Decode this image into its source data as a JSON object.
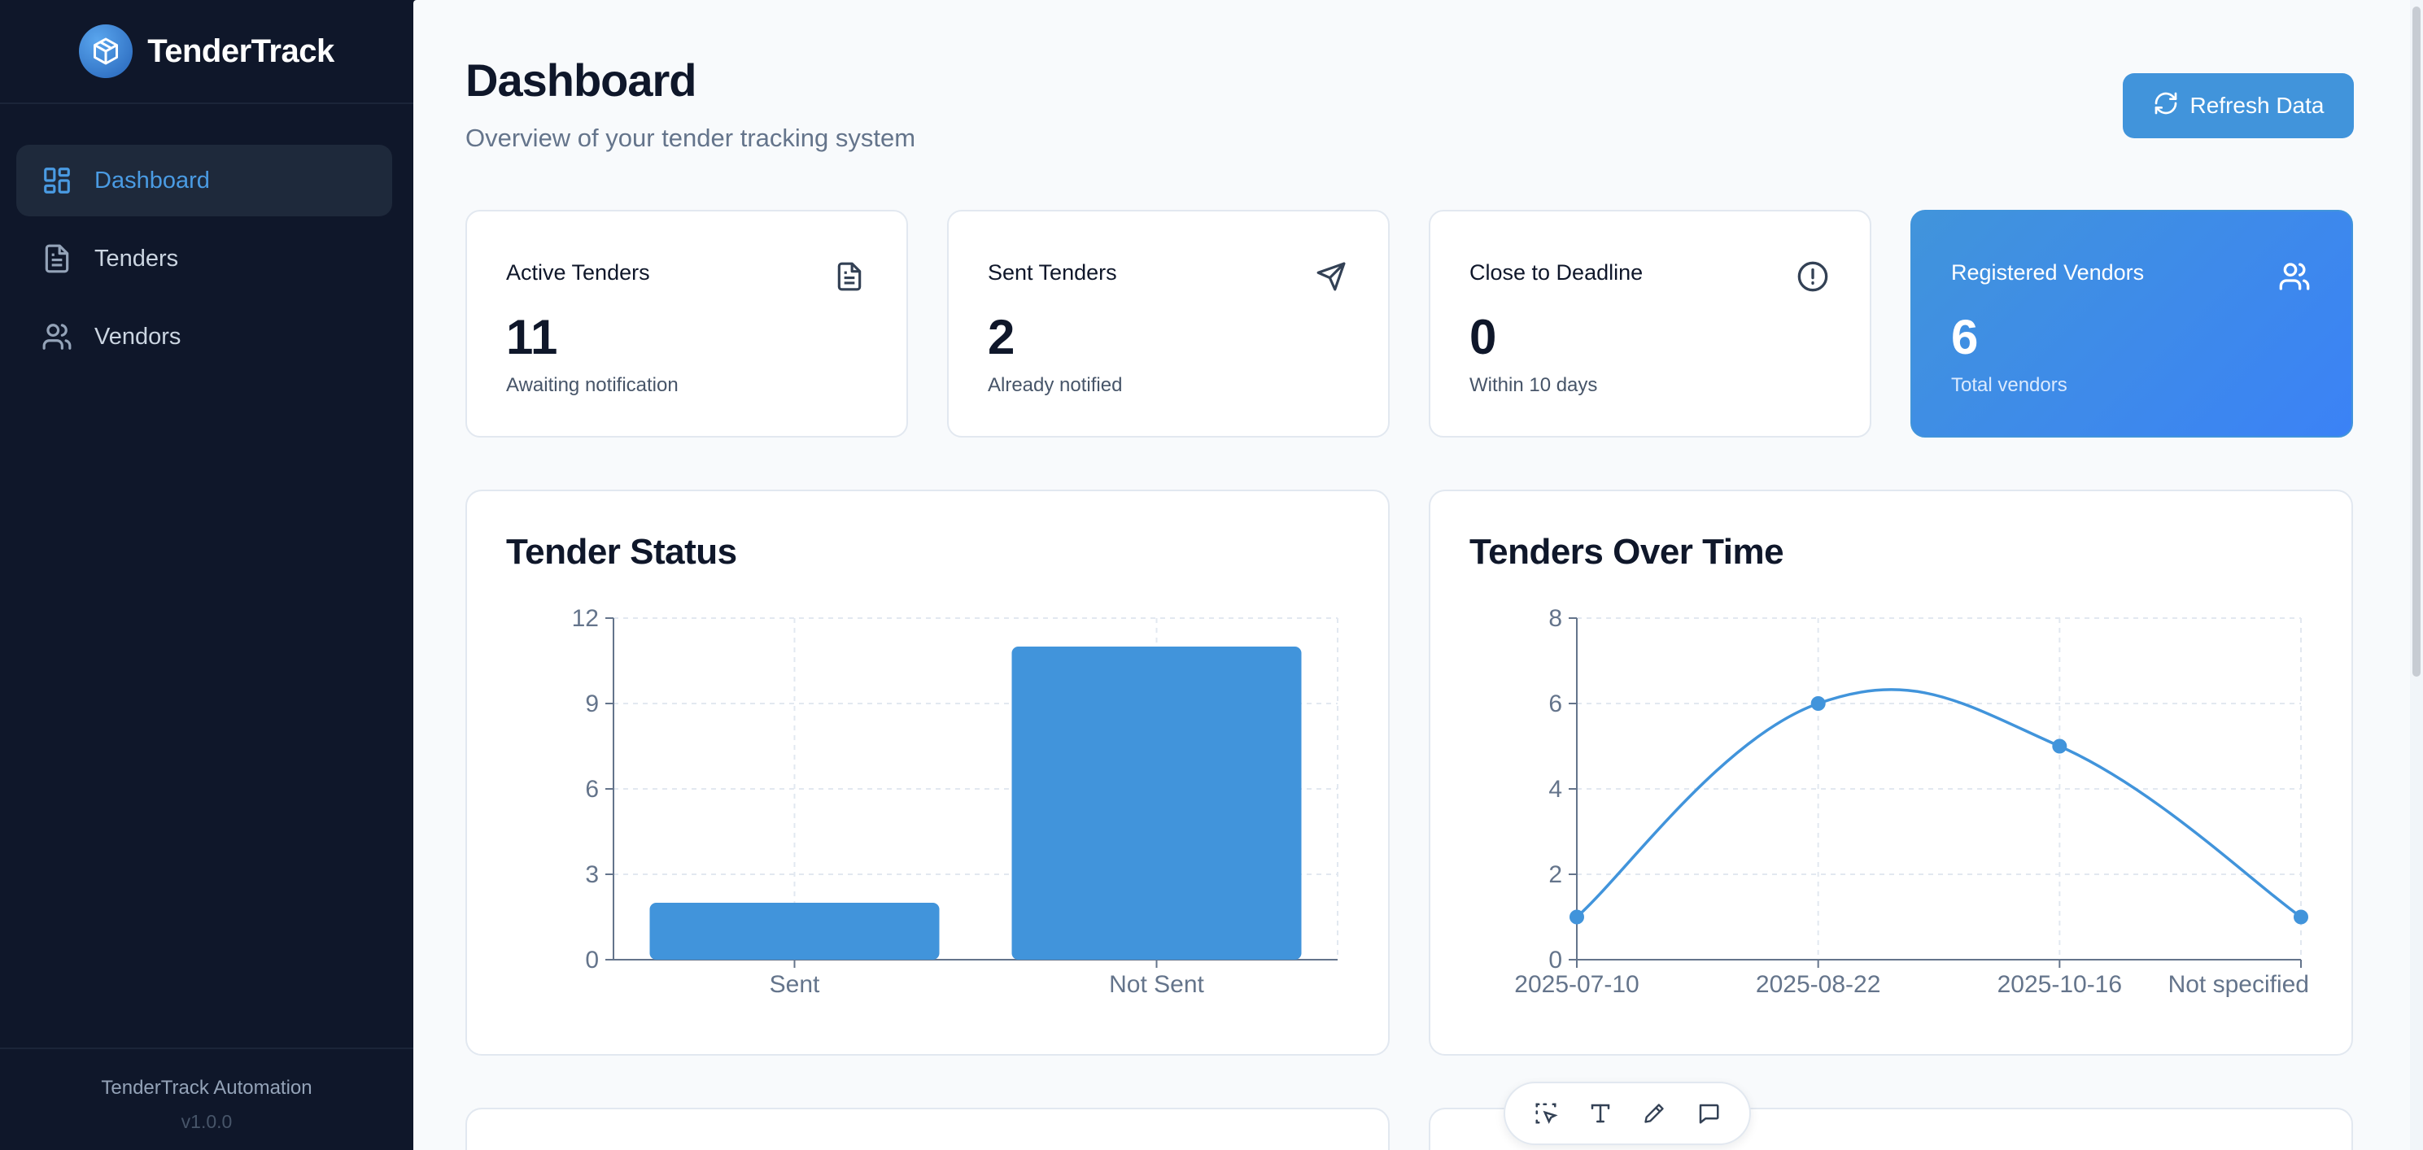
{
  "app": {
    "name": "TenderTrack",
    "footer_name": "TenderTrack Automation",
    "version": "v1.0.0"
  },
  "sidebar": {
    "items": [
      {
        "label": "Dashboard",
        "icon": "dashboard-grid-icon",
        "active": true
      },
      {
        "label": "Tenders",
        "icon": "document-icon",
        "active": false
      },
      {
        "label": "Vendors",
        "icon": "users-icon",
        "active": false
      }
    ]
  },
  "header": {
    "title": "Dashboard",
    "subtitle": "Overview of your tender tracking system",
    "refresh_label": "Refresh Data"
  },
  "stats": [
    {
      "title": "Active Tenders",
      "value": "11",
      "desc": "Awaiting notification",
      "icon": "document-icon"
    },
    {
      "title": "Sent Tenders",
      "value": "2",
      "desc": "Already notified",
      "icon": "send-icon"
    },
    {
      "title": "Close to Deadline",
      "value": "0",
      "desc": "Within 10 days",
      "icon": "alert-circle-icon"
    },
    {
      "title": "Registered Vendors",
      "value": "6",
      "desc": "Total vendors",
      "icon": "users-icon"
    }
  ],
  "colors": {
    "accent": "#4194db",
    "sidebar_bg": "#0f172a",
    "page_bg": "#f8fafc"
  },
  "chart_data": [
    {
      "type": "bar",
      "title": "Tender Status",
      "categories": [
        "Sent",
        "Not Sent"
      ],
      "values": [
        2,
        11
      ],
      "ylim": [
        0,
        12
      ],
      "yticks": [
        0,
        3,
        6,
        9,
        12
      ],
      "grid": true,
      "color": "#4194db"
    },
    {
      "type": "line",
      "title": "Tenders Over Time",
      "x": [
        "2025-07-10",
        "2025-08-22",
        "2025-10-16",
        "Not specified"
      ],
      "values": [
        1,
        6,
        5,
        1
      ],
      "ylim": [
        0,
        8
      ],
      "yticks": [
        0,
        2,
        4,
        6,
        8
      ],
      "grid": true,
      "color": "#4194db"
    }
  ],
  "toolbar": {
    "tools": [
      "select-area-icon",
      "text-icon",
      "pencil-icon",
      "comment-icon"
    ]
  }
}
